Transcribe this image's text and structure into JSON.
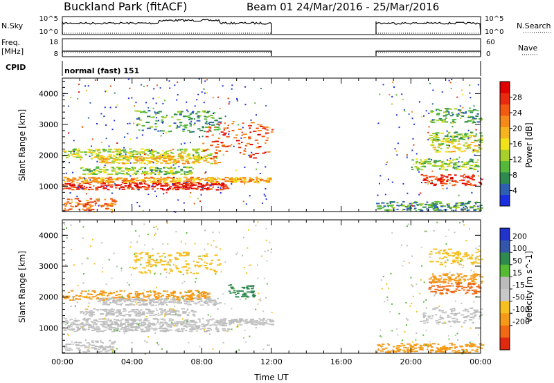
{
  "header": {
    "station": "Buckland Park (fitACF)",
    "beam_date": "Beam 01  24/Mar/2016 - 25/Mar/2016"
  },
  "colors": {
    "power_scale": [
      "#1a2fe0",
      "#2f5fb0",
      "#2f8a4f",
      "#56b83a",
      "#a8d02a",
      "#f2e21a",
      "#f5b520",
      "#f58a1a",
      "#f25a12",
      "#e82a10",
      "#e00000"
    ],
    "velocity_scale": [
      "#2233cc",
      "#3355aa",
      "#2e8a4e",
      "#55bb33",
      "#bbbbbb",
      "#c8c8c8",
      "#f5c020",
      "#f59a18",
      "#f06a15",
      "#e02a10"
    ]
  },
  "chart_data": [
    {
      "type": "line",
      "panel": "N.Sky / N.Search",
      "left_label": "N.Sky",
      "right_label": "N.Search",
      "left_ticks": [
        "10^5",
        "10^0"
      ],
      "right_ticks": [
        "10^5",
        "10^0"
      ],
      "x": [
        "00:00",
        "12:00",
        "18:00",
        "24:00"
      ],
      "segments": [
        {
          "start": "00:00",
          "end": "12:00"
        },
        {
          "start": "18:00",
          "end": "24:00"
        }
      ]
    },
    {
      "type": "line",
      "panel": "Freq / Nave",
      "left_label": "Freq.",
      "left_unit": "[MHz]",
      "right_label": "Nave",
      "left_ticks": [
        "18",
        "8"
      ],
      "right_ticks": [
        "60",
        "0"
      ],
      "segments": [
        {
          "start": "00:00",
          "end": "12:00"
        },
        {
          "start": "18:00",
          "end": "24:00"
        }
      ]
    },
    {
      "type": "table",
      "panel": "CPID",
      "label": "CPID",
      "value": "normal (fast) 151"
    },
    {
      "type": "heatmap",
      "panel": "Power",
      "ylabel": "Slant Range [km]",
      "ylim": [
        180,
        4500
      ],
      "yticks": [
        "1000",
        "2000",
        "3000",
        "4000"
      ],
      "xlim": [
        0,
        24
      ],
      "colorbar_label": "Power [dB]",
      "colorbar_ticks": [
        "4",
        "8",
        "12",
        "16",
        "20",
        "24",
        "28"
      ],
      "colorbar_range": [
        0,
        32
      ],
      "bands": [
        {
          "t0": 0,
          "t1": 9.5,
          "r": 1000,
          "dr": 120,
          "v": 28
        },
        {
          "t0": 0,
          "t1": 12,
          "r": 1200,
          "dr": 90,
          "v": 20
        },
        {
          "t0": 1,
          "t1": 7.5,
          "r": 1500,
          "dr": 120,
          "v": 12
        },
        {
          "t0": 0,
          "t1": 8.5,
          "r": 2050,
          "dr": 160,
          "v": 14
        },
        {
          "t0": 2,
          "t1": 9,
          "r": 1850,
          "dr": 120,
          "v": 18
        },
        {
          "t0": 0,
          "t1": 3,
          "r": 400,
          "dr": 200,
          "v": 24
        },
        {
          "t0": 4,
          "t1": 9,
          "r": 3100,
          "dr": 350,
          "v": 9
        },
        {
          "t0": 8,
          "t1": 12,
          "r": 2500,
          "dr": 600,
          "v": 26
        },
        {
          "t0": 20.5,
          "t1": 24,
          "r": 1200,
          "dr": 180,
          "v": 28
        },
        {
          "t0": 20,
          "t1": 24,
          "r": 1700,
          "dr": 180,
          "v": 12
        },
        {
          "t0": 21,
          "t1": 24,
          "r": 2300,
          "dr": 200,
          "v": 16
        },
        {
          "t0": 21,
          "t1": 24,
          "r": 2600,
          "dr": 150,
          "v": 12
        },
        {
          "t0": 18,
          "t1": 24,
          "r": 350,
          "dr": 150,
          "v": 8
        },
        {
          "t0": 21,
          "t1": 24,
          "r": 3300,
          "dr": 250,
          "v": 10
        }
      ]
    },
    {
      "type": "heatmap",
      "panel": "Velocity",
      "ylabel": "Slant Range [km]",
      "ylim": [
        180,
        4500
      ],
      "yticks": [
        "1000",
        "2000",
        "3000",
        "4000"
      ],
      "xlim": [
        0,
        24
      ],
      "xticks": [
        "00:00",
        "04:00",
        "08:00",
        "12:00",
        "16:00",
        "20:00",
        "00:00"
      ],
      "xlabel": "Time UT",
      "colorbar_label": "Velocity [m s^-1]",
      "colorbar_ticks": [
        "200",
        "100",
        "50",
        "15",
        "-15",
        "-50",
        "-100",
        "-200"
      ],
      "bands": [
        {
          "t0": 0,
          "t1": 9.5,
          "r": 1000,
          "dr": 120,
          "v": 0
        },
        {
          "t0": 0,
          "t1": 12,
          "r": 1200,
          "dr": 100,
          "v": 0
        },
        {
          "t0": 1,
          "t1": 7.5,
          "r": 1500,
          "dr": 120,
          "v": 0
        },
        {
          "t0": 0,
          "t1": 8.5,
          "r": 2050,
          "dr": 160,
          "v": -60
        },
        {
          "t0": 2,
          "t1": 9,
          "r": 1850,
          "dr": 120,
          "v": 0
        },
        {
          "t0": 0,
          "t1": 3,
          "r": 400,
          "dr": 200,
          "v": 0
        },
        {
          "t0": 4,
          "t1": 9,
          "r": 3100,
          "dr": 350,
          "v": -40
        },
        {
          "t0": 9.5,
          "t1": 11,
          "r": 2200,
          "dr": 200,
          "v": 60
        },
        {
          "t0": 20.5,
          "t1": 24,
          "r": 1400,
          "dr": 250,
          "v": 0
        },
        {
          "t0": 21,
          "t1": 24,
          "r": 2300,
          "dr": 200,
          "v": -120
        },
        {
          "t0": 21,
          "t1": 24,
          "r": 2600,
          "dr": 150,
          "v": -60
        },
        {
          "t0": 18,
          "t1": 24,
          "r": 350,
          "dr": 150,
          "v": -80
        },
        {
          "t0": 21,
          "t1": 24,
          "r": 3300,
          "dr": 250,
          "v": -30
        }
      ]
    }
  ]
}
